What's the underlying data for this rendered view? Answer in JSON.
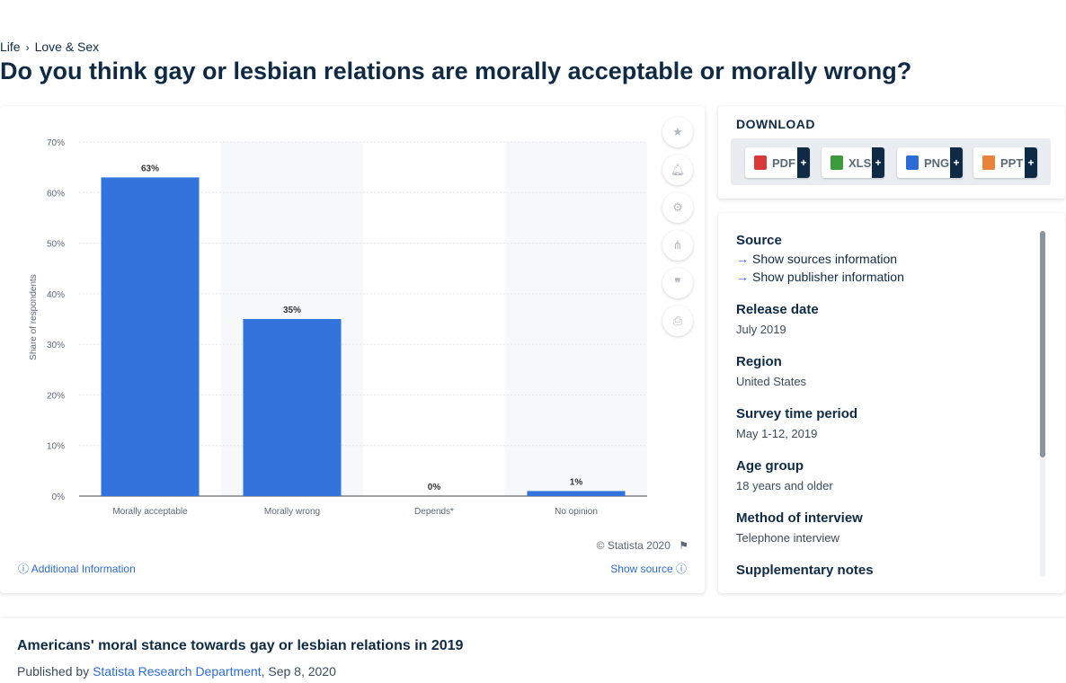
{
  "breadcrumb": {
    "level1": "Life",
    "level2": "Love & Sex"
  },
  "page_title": "Do you think gay or lesbian relations are morally acceptable or morally wrong?",
  "chart_data": {
    "type": "bar",
    "categories": [
      "Morally acceptable",
      "Morally wrong",
      "Depends*",
      "No opinion"
    ],
    "values": [
      63,
      35,
      0,
      1
    ],
    "data_labels": [
      "63%",
      "35%",
      "0%",
      "1%"
    ],
    "ylabel": "Share of respondents",
    "xlabel": "",
    "ylim": [
      0,
      70
    ],
    "yticks": [
      0,
      10,
      20,
      30,
      40,
      50,
      60,
      70
    ],
    "ytick_labels": [
      "0%",
      "10%",
      "20%",
      "30%",
      "40%",
      "50%",
      "60%",
      "70%"
    ],
    "bar_color": "#3373dc",
    "grid": true
  },
  "chart_footer": {
    "copyright": "© Statista 2020",
    "additional_info": "Additional Information",
    "show_source": "Show source"
  },
  "tools": [
    "star-icon",
    "bell-icon",
    "gear-icon",
    "share-icon",
    "quote-icon",
    "print-icon"
  ],
  "download": {
    "heading": "DOWNLOAD",
    "buttons": [
      {
        "label": "PDF",
        "icon": "pdf-file-icon",
        "color": "#d9383a"
      },
      {
        "label": "XLS",
        "icon": "xls-file-icon",
        "color": "#3d9a3a"
      },
      {
        "label": "PNG",
        "icon": "png-file-icon",
        "color": "#2b6cd6"
      },
      {
        "label": "PPT",
        "icon": "ppt-file-icon",
        "color": "#e8833a"
      }
    ],
    "plus": "+"
  },
  "info": {
    "source_label": "Source",
    "show_sources": "Show sources information",
    "show_publisher": "Show publisher information",
    "release_date_label": "Release date",
    "release_date": "July 2019",
    "region_label": "Region",
    "region": "United States",
    "survey_period_label": "Survey time period",
    "survey_period": "May 1-12, 2019",
    "age_group_label": "Age group",
    "age_group": "18 years and older",
    "method_label": "Method of interview",
    "method": "Telephone interview",
    "supplementary_label": "Supplementary notes"
  },
  "statistic": {
    "title": "Americans' moral stance towards gay or lesbian relations in 2019",
    "published_prefix": "Published by",
    "publisher": "Statista Research Department",
    "date": ", Sep 8, 2020"
  },
  "colors": {
    "accent": "#2b6cd6",
    "navy": "#0f2a44"
  }
}
